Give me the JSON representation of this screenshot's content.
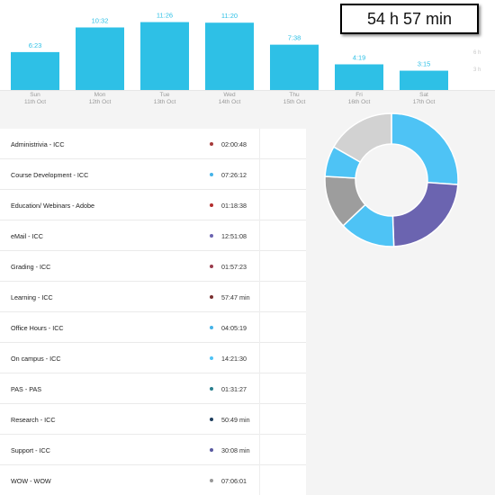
{
  "total": "54 h 57 min",
  "chart_data": {
    "type": "bar",
    "categories": [
      "Sun",
      "Mon",
      "Tue",
      "Wed",
      "Thu",
      "Fri",
      "Sat"
    ],
    "dates": [
      "11th Oct",
      "12th Oct",
      "13th Oct",
      "14th Oct",
      "15th Oct",
      "16th Oct",
      "17th Oct"
    ],
    "value_labels": [
      "6:23",
      "10:32",
      "11:26",
      "11:20",
      "7:38",
      "4:19",
      "3:15"
    ],
    "values": [
      6.38,
      10.53,
      11.43,
      11.33,
      7.63,
      4.32,
      3.25
    ],
    "hour_marks": [
      "6 h",
      "3 h"
    ],
    "bar_color": "#2ec0e6",
    "label_color": "#2ec0e6"
  },
  "activities": [
    {
      "label": "Administrivia - ICC",
      "time": "02:00:48",
      "color": "#a63a3a"
    },
    {
      "label": "Course Development - ICC",
      "time": "07:26:12",
      "color": "#45b3e8"
    },
    {
      "label": "Education/ Webinars - Adobe",
      "time": "01:18:38",
      "color": "#b32d2d"
    },
    {
      "label": "eMail - ICC",
      "time": "12:51:08",
      "color": "#6b64b0"
    },
    {
      "label": "Grading - ICC",
      "time": "01:57:23",
      "color": "#9a3c4c"
    },
    {
      "label": "Learning - ICC",
      "time": "57:47 min",
      "color": "#7a3030"
    },
    {
      "label": "Office Hours - ICC",
      "time": "04:05:19",
      "color": "#45b3e8"
    },
    {
      "label": "On campus - ICC",
      "time": "14:21:30",
      "color": "#4ec3f5"
    },
    {
      "label": "PAS - PAS",
      "time": "01:31:27",
      "color": "#2a7f8e"
    },
    {
      "label": "Research - ICC",
      "time": "50:49 min",
      "color": "#1f3f5e"
    },
    {
      "label": "Support - ICC",
      "time": "30:08 min",
      "color": "#5a5aa0"
    },
    {
      "label": "WOW - WOW",
      "time": "07:06:01",
      "color": "#999999"
    }
  ],
  "donut": {
    "slices": [
      {
        "value": 14.36,
        "color": "#4ec3f5"
      },
      {
        "value": 12.85,
        "color": "#6b64b0"
      },
      {
        "value": 7.44,
        "color": "#4ec3f5"
      },
      {
        "value": 7.1,
        "color": "#9d9d9d"
      },
      {
        "value": 4.09,
        "color": "#4ec3f5"
      },
      {
        "value": 9.2,
        "color": "#d2d2d2"
      }
    ]
  }
}
